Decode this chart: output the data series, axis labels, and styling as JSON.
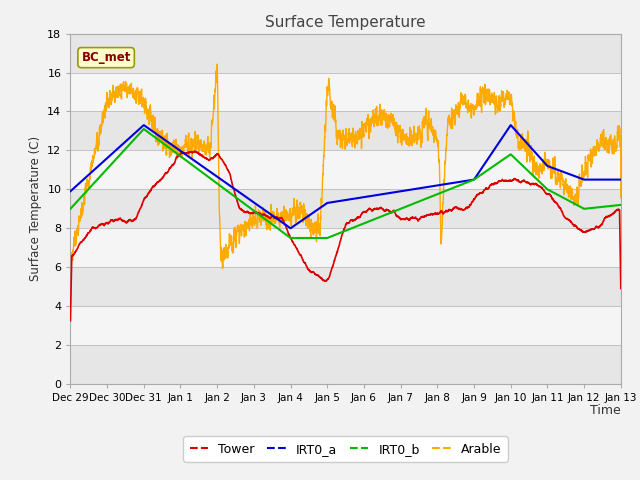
{
  "title": "Surface Temperature",
  "ylabel": "Surface Temperature (C)",
  "xlabel": "Time",
  "ylim": [
    0,
    18
  ],
  "yticks": [
    0,
    2,
    4,
    6,
    8,
    10,
    12,
    14,
    16,
    18
  ],
  "label_box_text": "BC_met",
  "series_colors": {
    "Tower": "#dd0000",
    "IRT0_a": "#0000dd",
    "IRT0_b": "#00bb00",
    "Arable": "#ffaa00"
  },
  "background_color": "#f2f2f2",
  "plot_bg_color": "#ffffff",
  "band_colors": [
    "#e6e6e6",
    "#f5f5f5"
  ],
  "x_tick_positions": [
    -2,
    -1,
    0,
    1,
    2,
    3,
    4,
    5,
    6,
    7,
    8,
    9,
    10,
    11,
    12,
    13
  ],
  "x_tick_labels": [
    "Dec 29",
    "Dec 30",
    "Dec 31",
    "Jan 1",
    "Jan 2",
    "Jan 3",
    "Jan 4",
    "Jan 5",
    "Jan 6",
    "Jan 7",
    "Jan 8",
    "Jan 9",
    "Jan 10",
    "Jan 11",
    "Jan 12",
    "Jan 13"
  ],
  "irt0a_x": [
    -2,
    0,
    4,
    5,
    9,
    10,
    11,
    12,
    13
  ],
  "irt0a_y": [
    9.9,
    13.3,
    8.0,
    9.3,
    10.5,
    13.3,
    11.2,
    10.5,
    10.5
  ],
  "irt0b_x": [
    -2,
    0,
    4,
    5,
    9,
    10,
    11,
    12,
    13
  ],
  "irt0b_y": [
    9.0,
    13.1,
    7.5,
    7.5,
    10.5,
    11.8,
    10.0,
    9.0,
    9.2
  ]
}
